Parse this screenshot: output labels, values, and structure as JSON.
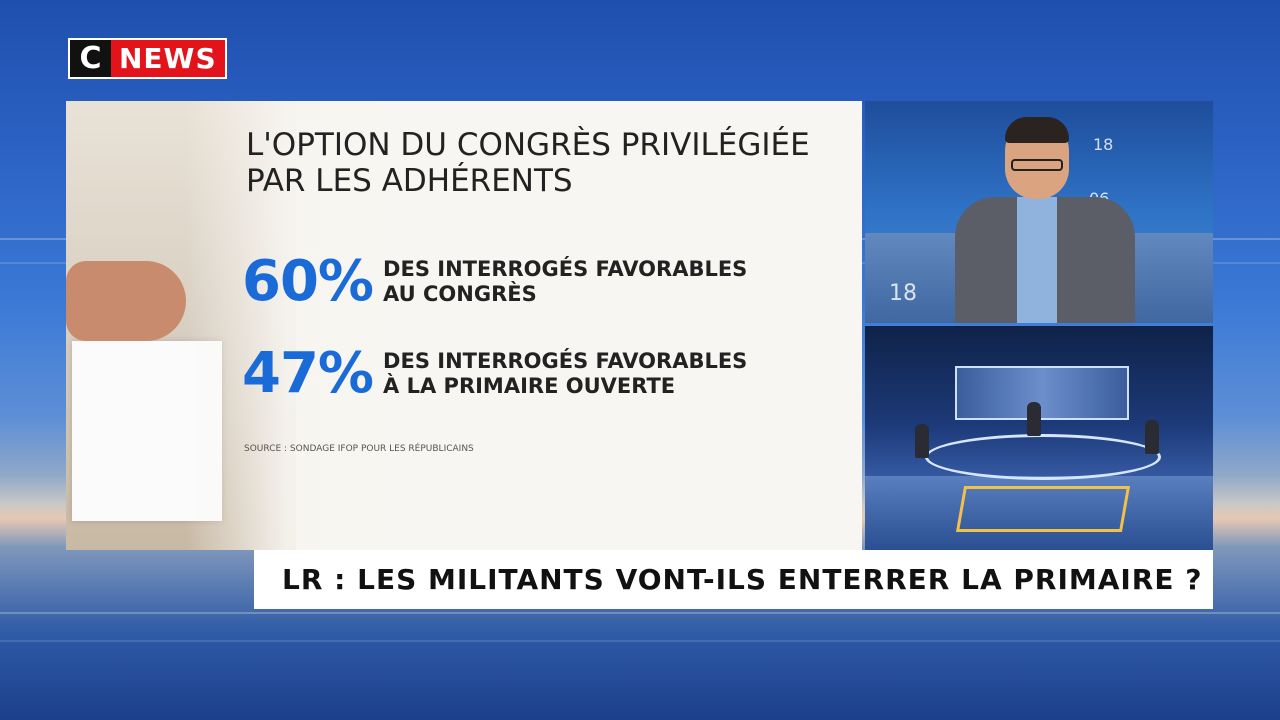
{
  "logo": {
    "c": "C",
    "news": "NEWS"
  },
  "infographic": {
    "title_line1": "L'OPTION DU CONGRÈS PRIVILÉGIÉE",
    "title_line2": "PAR LES ADHÉRENTS",
    "stats": [
      {
        "percent": "60%",
        "line1": "DES INTERROGÉS FAVORABLES",
        "line2": "AU CONGRÈS"
      },
      {
        "percent": "47%",
        "line1": "DES INTERROGÉS FAVORABLES",
        "line2": "À LA PRIMAIRE OUVERTE"
      }
    ],
    "source": "SOURCE : SONDAGE IFOP POUR LES RÉPUBLICAINS"
  },
  "cam1": {
    "numbers": [
      "18",
      "06",
      "18"
    ]
  },
  "headline": "LR : LES MILITANTS VONT-ILS ENTERRER LA PRIMAIRE ?",
  "colors": {
    "accent_blue": "#1a6ad8",
    "brand_red": "#e2131b"
  }
}
